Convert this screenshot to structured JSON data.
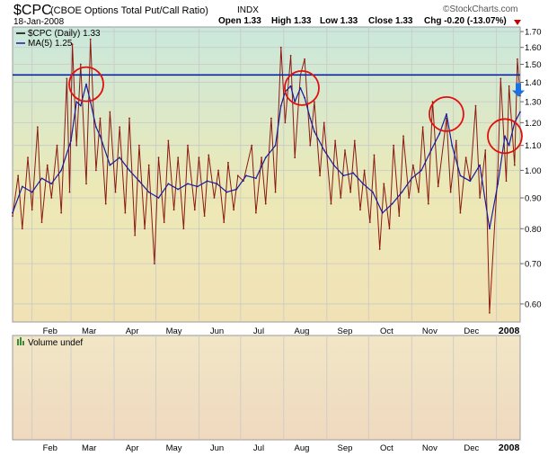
{
  "header": {
    "symbol": "$CPC",
    "description": "(CBOE Options Total Put/Call Ratio)",
    "exchange": "INDX",
    "date": "18-Jan-2008",
    "watermark": "©StockCharts.com",
    "quote": {
      "open": "Open 1.33",
      "high": "High 1.33",
      "low": "Low 1.33",
      "close": "Close 1.33",
      "chg": "Chg -0.20 (-13.07%)"
    }
  },
  "legend": {
    "series_label": "$CPC (Daily) 1.33",
    "ma_label": "MA(5) 1.25"
  },
  "volume_panel": {
    "label": "Volume undef"
  },
  "colors": {
    "price": "#8b1a10",
    "ma": "#1a1a9e",
    "hline": "#0b22a6",
    "circle": "#e01010",
    "arrow": "#1f6fe0",
    "grid": "#c8c8c8",
    "down_triangle": "#c00000"
  },
  "chart_data": {
    "type": "line",
    "title": "$CPC (CBOE Options Total Put/Call Ratio)",
    "x_tick_labels": [
      "Feb",
      "Mar",
      "Apr",
      "May",
      "Jun",
      "Jul",
      "Aug",
      "Sep",
      "Oct",
      "Nov",
      "Dec",
      "2008"
    ],
    "y_tick_labels": [
      "0.60",
      "0.70",
      "0.80",
      "0.90",
      "1.00",
      "1.10",
      "1.20",
      "1.30",
      "1.40",
      "1.50",
      "1.60",
      "1.70"
    ],
    "y_ticks": [
      0.6,
      0.7,
      0.8,
      0.9,
      1.0,
      1.1,
      1.2,
      1.3,
      1.4,
      1.5,
      1.6,
      1.7
    ],
    "y_scale": "log",
    "ylim": [
      0.56,
      1.73
    ],
    "x_range": [
      "2007-01-18",
      "2008-01-18"
    ],
    "reference_line": 1.44,
    "circled_highs": [
      {
        "date": "2007-03-12",
        "value": 1.39
      },
      {
        "date": "2007-08-14",
        "value": 1.37
      },
      {
        "date": "2007-11-26",
        "value": 1.24
      },
      {
        "date": "2008-01-07",
        "value": 1.14
      }
    ],
    "arrow_marker": {
      "date": "2008-01-18",
      "value": 1.33
    },
    "series": [
      {
        "name": "$CPC (Daily)",
        "x": [
          "2007-01-18",
          "2007-01-22",
          "2007-01-25",
          "2007-01-29",
          "2007-02-01",
          "2007-02-05",
          "2007-02-08",
          "2007-02-12",
          "2007-02-15",
          "2007-02-19",
          "2007-02-22",
          "2007-02-26",
          "2007-02-28",
          "2007-03-02",
          "2007-03-05",
          "2007-03-08",
          "2007-03-12",
          "2007-03-15",
          "2007-03-19",
          "2007-03-22",
          "2007-03-26",
          "2007-03-29",
          "2007-04-02",
          "2007-04-05",
          "2007-04-09",
          "2007-04-12",
          "2007-04-16",
          "2007-04-19",
          "2007-04-23",
          "2007-04-26",
          "2007-04-30",
          "2007-05-03",
          "2007-05-07",
          "2007-05-10",
          "2007-05-14",
          "2007-05-17",
          "2007-05-21",
          "2007-05-24",
          "2007-05-29",
          "2007-06-01",
          "2007-06-05",
          "2007-06-08",
          "2007-06-12",
          "2007-06-15",
          "2007-06-19",
          "2007-06-22",
          "2007-06-26",
          "2007-06-29",
          "2007-07-03",
          "2007-07-09",
          "2007-07-12",
          "2007-07-16",
          "2007-07-19",
          "2007-07-23",
          "2007-07-26",
          "2007-07-30",
          "2007-08-02",
          "2007-08-06",
          "2007-08-09",
          "2007-08-13",
          "2007-08-16",
          "2007-08-20",
          "2007-08-23",
          "2007-08-27",
          "2007-08-30",
          "2007-09-04",
          "2007-09-07",
          "2007-09-11",
          "2007-09-14",
          "2007-09-18",
          "2007-09-21",
          "2007-09-25",
          "2007-09-28",
          "2007-10-02",
          "2007-10-05",
          "2007-10-09",
          "2007-10-12",
          "2007-10-16",
          "2007-10-19",
          "2007-10-23",
          "2007-10-26",
          "2007-10-30",
          "2007-11-02",
          "2007-11-06",
          "2007-11-09",
          "2007-11-13",
          "2007-11-16",
          "2007-11-20",
          "2007-11-26",
          "2007-11-29",
          "2007-12-03",
          "2007-12-06",
          "2007-12-10",
          "2007-12-13",
          "2007-12-17",
          "2007-12-20",
          "2007-12-24",
          "2007-12-27",
          "2008-01-02",
          "2008-01-04",
          "2008-01-08",
          "2008-01-10",
          "2008-01-14",
          "2008-01-16",
          "2008-01-18"
        ],
        "values": [
          0.84,
          0.98,
          0.8,
          1.05,
          0.86,
          1.18,
          0.82,
          1.02,
          0.9,
          1.1,
          0.85,
          1.42,
          0.92,
          1.62,
          1.1,
          1.5,
          0.95,
          1.65,
          1.0,
          1.22,
          0.88,
          1.25,
          0.92,
          1.18,
          0.85,
          1.22,
          0.78,
          1.1,
          0.8,
          1.02,
          0.7,
          1.05,
          0.82,
          1.12,
          0.86,
          1.05,
          0.8,
          1.1,
          0.86,
          1.05,
          0.84,
          1.06,
          0.9,
          1.0,
          0.82,
          1.03,
          0.86,
          0.98,
          0.96,
          1.1,
          0.85,
          1.05,
          0.88,
          1.22,
          0.92,
          1.6,
          1.2,
          1.55,
          1.05,
          1.44,
          1.53,
          1.1,
          1.3,
          0.98,
          1.2,
          0.88,
          1.12,
          0.9,
          1.08,
          0.92,
          1.12,
          0.86,
          1.0,
          0.82,
          1.06,
          0.74,
          0.95,
          0.8,
          1.1,
          0.84,
          1.14,
          0.9,
          1.02,
          0.92,
          1.18,
          0.88,
          1.3,
          0.94,
          1.22,
          0.92,
          1.12,
          0.85,
          1.05,
          0.96,
          1.28,
          0.9,
          1.08,
          0.58,
          1.0,
          1.42,
          0.96,
          1.38,
          1.02,
          1.53,
          1.33
        ]
      },
      {
        "name": "MA(5)",
        "x": [
          "2007-01-18",
          "2007-01-25",
          "2007-02-01",
          "2007-02-08",
          "2007-02-15",
          "2007-02-22",
          "2007-03-01",
          "2007-03-05",
          "2007-03-08",
          "2007-03-12",
          "2007-03-15",
          "2007-03-19",
          "2007-03-22",
          "2007-03-29",
          "2007-04-05",
          "2007-04-12",
          "2007-04-19",
          "2007-04-26",
          "2007-05-03",
          "2007-05-10",
          "2007-05-17",
          "2007-05-24",
          "2007-05-31",
          "2007-06-07",
          "2007-06-14",
          "2007-06-21",
          "2007-06-28",
          "2007-07-05",
          "2007-07-12",
          "2007-07-19",
          "2007-07-26",
          "2007-07-30",
          "2007-08-02",
          "2007-08-06",
          "2007-08-09",
          "2007-08-13",
          "2007-08-16",
          "2007-08-20",
          "2007-08-23",
          "2007-08-30",
          "2007-09-06",
          "2007-09-13",
          "2007-09-20",
          "2007-09-27",
          "2007-10-04",
          "2007-10-11",
          "2007-10-18",
          "2007-10-25",
          "2007-11-01",
          "2007-11-08",
          "2007-11-15",
          "2007-11-21",
          "2007-11-26",
          "2007-11-30",
          "2007-12-06",
          "2007-12-13",
          "2007-12-20",
          "2007-12-27",
          "2008-01-02",
          "2008-01-07",
          "2008-01-10",
          "2008-01-14",
          "2008-01-18"
        ],
        "values": [
          0.85,
          0.94,
          0.92,
          0.97,
          0.95,
          1.0,
          1.12,
          1.3,
          1.28,
          1.39,
          1.3,
          1.18,
          1.14,
          1.02,
          1.05,
          1.0,
          0.96,
          0.92,
          0.9,
          0.95,
          0.93,
          0.95,
          0.94,
          0.96,
          0.95,
          0.92,
          0.93,
          0.98,
          0.97,
          1.05,
          1.1,
          1.28,
          1.35,
          1.38,
          1.3,
          1.37,
          1.32,
          1.22,
          1.16,
          1.08,
          1.02,
          0.98,
          0.99,
          0.95,
          0.92,
          0.85,
          0.88,
          0.92,
          0.97,
          1.0,
          1.08,
          1.15,
          1.24,
          1.1,
          0.98,
          0.96,
          1.02,
          0.8,
          0.95,
          1.14,
          1.1,
          1.2,
          1.25
        ]
      }
    ]
  }
}
